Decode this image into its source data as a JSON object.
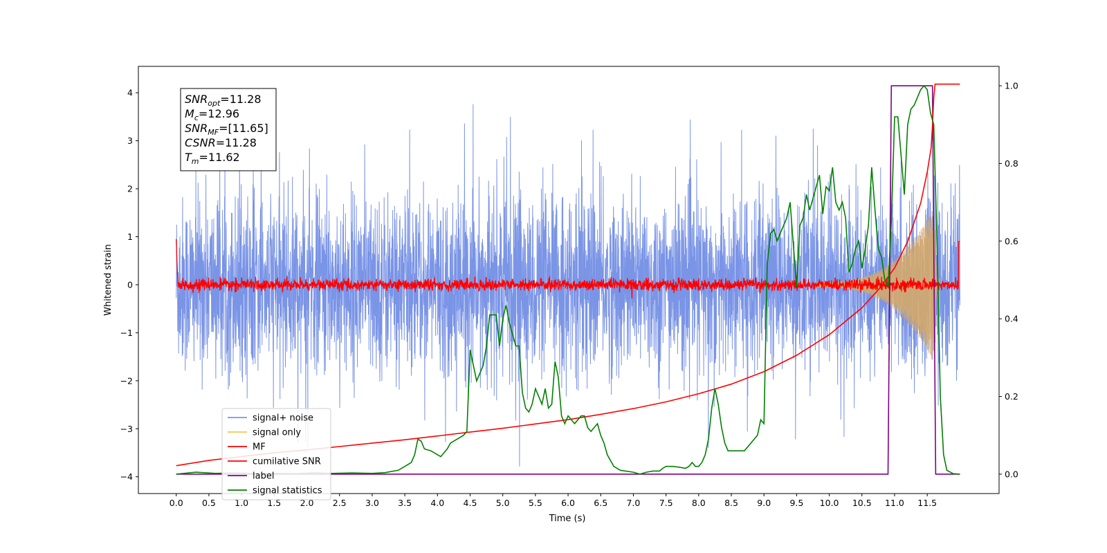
{
  "chart_data": {
    "type": "line",
    "xlabel": "Time (s)",
    "ylabel": "Whitened strain",
    "xlim": [
      -0.58,
      12.6
    ],
    "ylim_left": [
      -4.35,
      4.55
    ],
    "ylim_right": [
      -0.05,
      1.05
    ],
    "x_ticks": [
      "0.0",
      "0.5",
      "1.0",
      "1.5",
      "2.0",
      "2.5",
      "3.0",
      "3.5",
      "4.0",
      "4.5",
      "5.0",
      "5.5",
      "6.0",
      "6.5",
      "7.0",
      "7.5",
      "8.0",
      "8.5",
      "9.0",
      "9.5",
      "10.0",
      "10.5",
      "11.0",
      "11.5"
    ],
    "y_ticks_left": [
      "4",
      "3",
      "2",
      "1",
      "0",
      "−1",
      "−2",
      "−3",
      "−4"
    ],
    "y_ticks_right": [
      "1.0",
      "0.8",
      "0.6",
      "0.4",
      "0.2",
      "0.0"
    ],
    "legend": {
      "placement": "lower-left",
      "entries": [
        {
          "label": "signal+ noise",
          "color": "#7a94e6"
        },
        {
          "label": "signal only",
          "color": "#f3c64f"
        },
        {
          "label": "MF",
          "color": "#ff0000"
        },
        {
          "label": "cumilative SNR",
          "color": "#ff0000"
        },
        {
          "label": "label",
          "color": "#800080"
        },
        {
          "label": "signal statistics",
          "color": "#008000"
        }
      ]
    },
    "annotation": [
      {
        "base": "SNR",
        "sub": "opt",
        "value": "=11.28"
      },
      {
        "base": "M",
        "sub": "c",
        "value": "=12.96"
      },
      {
        "base": "SNR",
        "sub": "MF",
        "value": "=[11.65]"
      },
      {
        "base": "CSNR",
        "sub": "",
        "value": "=11.28"
      },
      {
        "base": "T",
        "sub": "m",
        "value": "=11.62"
      }
    ],
    "series": [
      {
        "name": "label",
        "axis": "right",
        "color": "#800080",
        "x": [
          0,
          10.9,
          10.95,
          11.58,
          11.63,
          12.0
        ],
        "y": [
          0,
          0,
          1,
          1,
          0,
          0
        ]
      },
      {
        "name": "cumilative SNR",
        "axis": "left",
        "color": "#ff0000",
        "x": [
          0.0,
          0.5,
          1.0,
          1.5,
          2.0,
          2.5,
          3.0,
          3.5,
          4.0,
          4.5,
          5.0,
          5.5,
          6.0,
          6.5,
          7.0,
          7.5,
          8.0,
          8.5,
          9.0,
          9.5,
          10.0,
          10.5,
          10.8,
          11.0,
          11.2,
          11.4,
          11.5,
          11.56,
          11.58,
          11.6,
          11.62,
          12.0
        ],
        "y": [
          -3.77,
          -3.66,
          -3.58,
          -3.5,
          -3.44,
          -3.37,
          -3.3,
          -3.23,
          -3.15,
          -3.07,
          -2.99,
          -2.9,
          -2.81,
          -2.7,
          -2.58,
          -2.44,
          -2.27,
          -2.07,
          -1.81,
          -1.47,
          -1.04,
          -0.48,
          -0.03,
          0.35,
          0.9,
          1.7,
          2.35,
          2.85,
          3.3,
          3.9,
          4.18,
          4.18
        ]
      },
      {
        "name": "signal statistics",
        "axis": "right",
        "color": "#008000",
        "x": [
          0.0,
          0.3,
          0.6,
          0.9,
          1.2,
          1.5,
          1.8,
          2.1,
          2.4,
          2.7,
          3.0,
          3.2,
          3.4,
          3.5,
          3.6,
          3.65,
          3.7,
          3.75,
          3.8,
          3.9,
          4.0,
          4.05,
          4.1,
          4.15,
          4.2,
          4.3,
          4.4,
          4.45,
          4.5,
          4.6,
          4.7,
          4.75,
          4.8,
          4.9,
          4.95,
          5.0,
          5.05,
          5.1,
          5.2,
          5.25,
          5.3,
          5.35,
          5.4,
          5.45,
          5.5,
          5.55,
          5.6,
          5.65,
          5.7,
          5.75,
          5.8,
          5.85,
          5.9,
          5.95,
          6.0,
          6.05,
          6.1,
          6.15,
          6.2,
          6.25,
          6.3,
          6.35,
          6.4,
          6.45,
          6.5,
          6.55,
          6.6,
          6.7,
          6.8,
          7.0,
          7.1,
          7.2,
          7.3,
          7.4,
          7.45,
          7.5,
          7.6,
          7.7,
          7.8,
          7.85,
          7.9,
          7.95,
          8.0,
          8.05,
          8.1,
          8.15,
          8.2,
          8.25,
          8.3,
          8.35,
          8.4,
          8.45,
          8.5,
          8.6,
          8.7,
          8.8,
          8.9,
          8.95,
          9.0,
          9.05,
          9.1,
          9.15,
          9.2,
          9.25,
          9.3,
          9.35,
          9.4,
          9.45,
          9.5,
          9.55,
          9.6,
          9.65,
          9.7,
          9.75,
          9.8,
          9.85,
          9.9,
          9.95,
          10.0,
          10.05,
          10.1,
          10.15,
          10.2,
          10.25,
          10.3,
          10.35,
          10.4,
          10.45,
          10.5,
          10.55,
          10.6,
          10.65,
          10.7,
          10.75,
          10.8,
          10.85,
          10.9,
          10.95,
          11.0,
          11.05,
          11.1,
          11.15,
          11.2,
          11.25,
          11.3,
          11.35,
          11.4,
          11.45,
          11.5,
          11.55,
          11.6,
          11.65,
          11.7,
          11.75,
          11.8,
          11.9,
          12.0
        ],
        "y": [
          0.0,
          0.005,
          0.002,
          0.003,
          0.001,
          0.002,
          0.001,
          0.003,
          0.002,
          0.003,
          0.002,
          0.004,
          0.01,
          0.02,
          0.03,
          0.05,
          0.09,
          0.085,
          0.065,
          0.06,
          0.05,
          0.045,
          0.055,
          0.065,
          0.08,
          0.09,
          0.1,
          0.11,
          0.32,
          0.24,
          0.28,
          0.33,
          0.41,
          0.41,
          0.33,
          0.4,
          0.435,
          0.39,
          0.33,
          0.33,
          0.21,
          0.17,
          0.16,
          0.18,
          0.22,
          0.2,
          0.18,
          0.22,
          0.17,
          0.18,
          0.29,
          0.25,
          0.15,
          0.13,
          0.15,
          0.14,
          0.13,
          0.14,
          0.15,
          0.15,
          0.12,
          0.11,
          0.12,
          0.13,
          0.1,
          0.08,
          0.05,
          0.02,
          0.01,
          0.005,
          0.0,
          0.005,
          0.008,
          0.008,
          0.015,
          0.02,
          0.02,
          0.018,
          0.015,
          0.02,
          0.03,
          0.02,
          0.02,
          0.03,
          0.05,
          0.09,
          0.17,
          0.22,
          0.18,
          0.12,
          0.08,
          0.06,
          0.06,
          0.06,
          0.06,
          0.08,
          0.1,
          0.14,
          0.13,
          0.54,
          0.62,
          0.63,
          0.6,
          0.62,
          0.64,
          0.66,
          0.7,
          0.59,
          0.48,
          0.64,
          0.66,
          0.72,
          0.68,
          0.71,
          0.74,
          0.77,
          0.67,
          0.74,
          0.73,
          0.79,
          0.7,
          0.68,
          0.7,
          0.66,
          0.52,
          0.54,
          0.58,
          0.6,
          0.53,
          0.58,
          0.64,
          0.79,
          0.68,
          0.58,
          0.56,
          0.5,
          0.48,
          0.65,
          0.92,
          0.92,
          0.82,
          0.72,
          0.9,
          0.94,
          0.95,
          0.97,
          0.99,
          1.0,
          0.99,
          0.93,
          0.9,
          0.6,
          0.2,
          0.05,
          0.01,
          0.001,
          0.0
        ]
      }
    ]
  }
}
